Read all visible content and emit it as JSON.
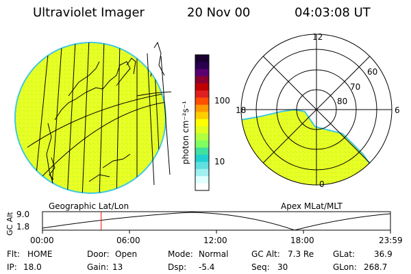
{
  "header": {
    "instrument": "Ultraviolet Imager",
    "date": "20 Nov 00",
    "time": "04:03:08 UT"
  },
  "colorbar": {
    "unit_label": "photon cm⁻²s⁻¹",
    "ticks": [
      "100",
      "10"
    ],
    "colors_top_to_bottom": [
      "#1a0030",
      "#2b0050",
      "#5a0070",
      "#8b0030",
      "#c00000",
      "#e02020",
      "#ff5000",
      "#ff9900",
      "#ffcc00",
      "#ffff00",
      "#e0ff20",
      "#b0ff40",
      "#80ff60",
      "#40e0a0",
      "#20d0d0",
      "#60e0e0",
      "#a0f0f0",
      "#e0ffff",
      "#ffffff"
    ]
  },
  "maps": {
    "left_label": "Geographic Lat/Lon",
    "right_label": "Apex MLat/MLT",
    "mlt_labels": {
      "top": "12",
      "left": "18",
      "right": "6",
      "bottom": "0"
    },
    "mlat_labels": [
      "60",
      "70",
      "80"
    ],
    "fill_color": "#e8ff20"
  },
  "altitude_plot": {
    "ylabel": "GC Alt",
    "ytick_top": "9.0",
    "ytick_bottom": "1.8",
    "xticks": [
      "00:00",
      "06:00",
      "12:00",
      "18:00",
      "23:59"
    ],
    "current_time_hours": 4.05,
    "marker_color": "#ff0000"
  },
  "info": {
    "flt_label": "Flt:",
    "flt_value": "HOME",
    "ip_label": "IP:",
    "ip_value": "18.0",
    "door_label": "Door:",
    "door_value": "Open",
    "gain_label": "Gain:",
    "gain_value": "13",
    "mode_label": "Mode:",
    "mode_value": "Normal",
    "dsp_label": "Dsp:",
    "dsp_value": "-5.4",
    "gcalt_label": "GC Alt:",
    "gcalt_value": "7.3 Re",
    "seq_label": "Seq:",
    "seq_value": "30",
    "glat_label": "GLat:",
    "glat_value": "36.9",
    "glon_label": "GLon:",
    "glon_value": "268.7"
  }
}
